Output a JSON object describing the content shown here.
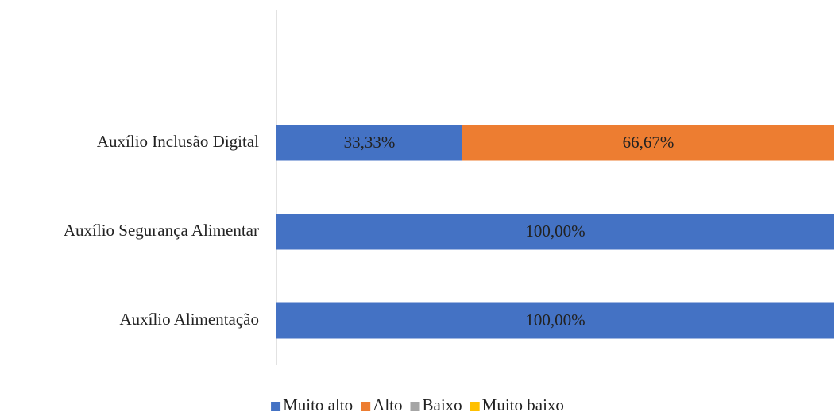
{
  "chart_data": {
    "type": "stacked-bar-horizontal",
    "categories": [
      "Auxílio Alimentação",
      "Auxílio Segurança Alimentar",
      "Auxílio Inclusão Digital",
      null
    ],
    "series": [
      {
        "name": "Muito alto",
        "color": "#4472c4",
        "values": [
          100,
          100,
          33.33,
          null
        ],
        "value_labels": [
          "100,00%",
          "100,00%",
          "33,33%",
          null
        ]
      },
      {
        "name": "Alto",
        "color": "#ed7d31",
        "values": [
          0,
          0,
          66.67,
          null
        ],
        "value_labels": [
          null,
          null,
          "66,67%",
          null
        ]
      },
      {
        "name": "Baixo",
        "color": "#a5a5a5",
        "values": [
          0,
          0,
          0,
          null
        ]
      },
      {
        "name": "Muito baixo",
        "color": "#ffc000",
        "values": [
          0,
          0,
          0,
          null
        ]
      }
    ],
    "xlim": [
      0,
      100
    ],
    "legend": "bottom"
  }
}
